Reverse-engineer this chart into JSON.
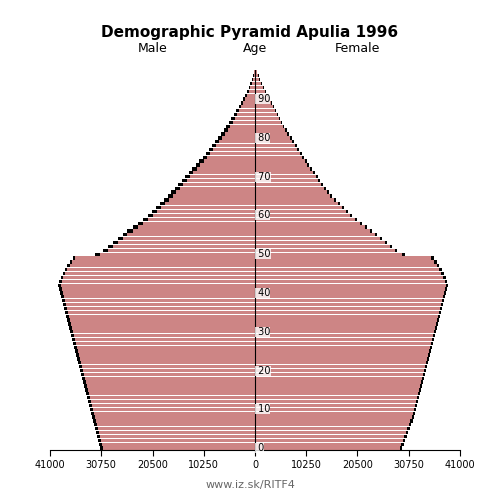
{
  "title": "Demographic Pyramid Apulia 1996",
  "male_label": "Male",
  "female_label": "Female",
  "age_label": "Age",
  "footer": "www.iz.sk/RITF4",
  "xlim": 41000,
  "bar_color": "#CD8585",
  "ref_color": "#000000",
  "male": [
    30500,
    30700,
    30900,
    31100,
    31300,
    31500,
    31700,
    31900,
    32100,
    32300,
    32500,
    32700,
    32900,
    33100,
    33300,
    33500,
    33700,
    33900,
    34100,
    34300,
    34500,
    34700,
    34900,
    35100,
    35300,
    35500,
    35700,
    35900,
    36100,
    36300,
    36500,
    36700,
    36900,
    37100,
    37300,
    37500,
    37700,
    37900,
    38100,
    38300,
    38500,
    38700,
    38900,
    38700,
    38400,
    38000,
    37600,
    37100,
    36600,
    36000,
    31000,
    29500,
    28500,
    27500,
    26500,
    25500,
    24500,
    23500,
    22500,
    21500,
    20500,
    19700,
    18900,
    18100,
    17300,
    16500,
    15800,
    15100,
    14400,
    13700,
    13000,
    12300,
    11600,
    10900,
    10200,
    9500,
    8900,
    8300,
    7700,
    7100,
    6500,
    5900,
    5400,
    4900,
    4400,
    3900,
    3500,
    3100,
    2700,
    2300,
    1900,
    1500,
    1200,
    900,
    650,
    450,
    280,
    160
  ],
  "female": [
    29000,
    29300,
    29600,
    29900,
    30200,
    30500,
    30800,
    31100,
    31400,
    31600,
    31800,
    32000,
    32200,
    32400,
    32600,
    32800,
    33000,
    33200,
    33400,
    33600,
    33800,
    34000,
    34200,
    34400,
    34600,
    34800,
    35000,
    35200,
    35400,
    35600,
    35800,
    36000,
    36200,
    36400,
    36600,
    36800,
    37000,
    37200,
    37400,
    37600,
    37800,
    38000,
    38200,
    38000,
    37700,
    37300,
    36900,
    36400,
    35900,
    35300,
    29500,
    28000,
    27000,
    26000,
    25000,
    24000,
    23000,
    22000,
    21000,
    20000,
    19000,
    18200,
    17500,
    16700,
    15900,
    15100,
    14500,
    13900,
    13300,
    12700,
    12200,
    11700,
    11100,
    10500,
    10000,
    9500,
    9000,
    8500,
    8000,
    7500,
    7000,
    6500,
    6000,
    5600,
    5200,
    4800,
    4400,
    4000,
    3600,
    3200,
    2800,
    2400,
    2000,
    1600,
    1200,
    900,
    650,
    400
  ],
  "male_ref": [
    31000,
    31200,
    31400,
    31600,
    31800,
    32000,
    32200,
    32400,
    32600,
    32800,
    33000,
    33200,
    33400,
    33600,
    33800,
    34000,
    34200,
    34400,
    34600,
    34800,
    35000,
    35200,
    35400,
    35600,
    35800,
    36000,
    36200,
    36400,
    36600,
    36800,
    37000,
    37200,
    37400,
    37600,
    37800,
    38000,
    38200,
    38400,
    38600,
    38800,
    39000,
    39200,
    39400,
    39200,
    38900,
    38500,
    38100,
    37600,
    37100,
    36500,
    32000,
    30500,
    29500,
    28500,
    27500,
    26500,
    25500,
    24500,
    23500,
    22500,
    21500,
    20700,
    19900,
    19100,
    18300,
    17500,
    16800,
    16100,
    15400,
    14700,
    14000,
    13200,
    12500,
    11800,
    11100,
    10400,
    9800,
    9200,
    8600,
    8000,
    7400,
    6800,
    6200,
    5700,
    5200,
    4700,
    4200,
    3700,
    3200,
    2800,
    2400,
    1900,
    1500,
    1200,
    900,
    650,
    430,
    250
  ],
  "female_ref": [
    29500,
    29800,
    30100,
    30400,
    30700,
    31000,
    31300,
    31600,
    31900,
    32100,
    32300,
    32500,
    32700,
    32900,
    33100,
    33300,
    33500,
    33700,
    33900,
    34100,
    34300,
    34500,
    34700,
    34900,
    35100,
    35300,
    35500,
    35700,
    35900,
    36100,
    36300,
    36500,
    36700,
    36900,
    37100,
    37300,
    37500,
    37700,
    37900,
    38100,
    38300,
    38500,
    38700,
    38500,
    38200,
    37800,
    37400,
    36900,
    36400,
    35800,
    30000,
    28500,
    27500,
    26500,
    25500,
    24500,
    23500,
    22500,
    21500,
    20500,
    19500,
    18700,
    17900,
    17100,
    16300,
    15500,
    14900,
    14300,
    13700,
    13100,
    12600,
    12100,
    11500,
    10900,
    10400,
    9900,
    9400,
    8900,
    8400,
    7900,
    7400,
    6900,
    6400,
    5900,
    5400,
    5000,
    4600,
    4200,
    3800,
    3400,
    3000,
    2600,
    2200,
    1800,
    1400,
    1050,
    750,
    480
  ]
}
